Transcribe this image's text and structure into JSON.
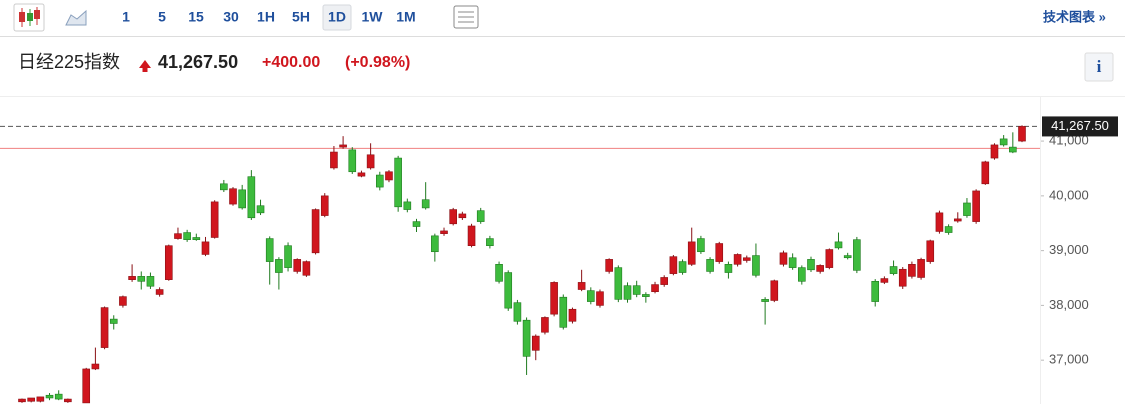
{
  "toolbar": {
    "intervals": [
      "1",
      "5",
      "15",
      "30",
      "1H",
      "5H",
      "1D",
      "1W",
      "1M"
    ],
    "active": "1D",
    "link": "技术图表 »"
  },
  "header": {
    "title": "日经225指数",
    "last": {
      "value": 41267.5,
      "label": "41,267.50"
    },
    "change": {
      "value": 400,
      "label": "+400.00"
    },
    "change_pct": {
      "value": 0.98,
      "label": "(+0.98%)"
    },
    "info": "i"
  },
  "chart_data": {
    "type": "candlestick",
    "up_color": "#d0161e",
    "down_color": "#3dbb3d",
    "prev_close": 40867.5,
    "ylim": [
      36200,
      41750
    ],
    "yticks": [
      {
        "value": 37000,
        "label": "37,000"
      },
      {
        "value": 38000,
        "label": "38,000"
      },
      {
        "value": 39000,
        "label": "39,000"
      },
      {
        "value": 40000,
        "label": "40,000"
      },
      {
        "value": 41000,
        "label": "41,000"
      }
    ],
    "ohlc": [
      [
        36240,
        36300,
        36220,
        36290
      ],
      [
        36250,
        36310,
        36230,
        36310
      ],
      [
        36250,
        36330,
        36230,
        36330
      ],
      [
        36360,
        36400,
        36270,
        36310
      ],
      [
        36380,
        36450,
        36270,
        36290
      ],
      [
        36240,
        36300,
        36220,
        36290
      ],
      null,
      [
        36220,
        36860,
        36220,
        36840
      ],
      [
        36840,
        37230,
        36820,
        36930
      ],
      [
        37230,
        37980,
        37200,
        37960
      ],
      [
        37750,
        37820,
        37560,
        37670
      ],
      [
        38000,
        38180,
        37960,
        38160
      ],
      [
        38470,
        38750,
        38430,
        38530
      ],
      [
        38530,
        38620,
        38290,
        38440
      ],
      [
        38530,
        38600,
        38300,
        38350
      ],
      [
        38200,
        38330,
        38160,
        38290
      ],
      [
        38470,
        39110,
        38450,
        39090
      ],
      [
        39220,
        39420,
        39200,
        39310
      ],
      [
        39330,
        39380,
        39160,
        39200
      ],
      [
        39240,
        39310,
        39180,
        39200
      ],
      [
        38930,
        39250,
        38900,
        39160
      ],
      [
        39240,
        39920,
        39220,
        39890
      ],
      [
        40220,
        40290,
        40070,
        40110
      ],
      [
        39850,
        40160,
        39820,
        40130
      ],
      [
        40110,
        40200,
        39750,
        39780
      ],
      [
        40350,
        40470,
        39560,
        39600
      ],
      [
        39820,
        39930,
        39650,
        39690
      ],
      [
        39220,
        39260,
        38380,
        38800
      ],
      [
        38840,
        38880,
        38290,
        38600
      ],
      [
        39090,
        39150,
        38620,
        38690
      ],
      [
        38620,
        38860,
        38580,
        38840
      ],
      [
        38550,
        38820,
        38520,
        38800
      ],
      [
        38960,
        39770,
        38930,
        39750
      ],
      [
        39640,
        40050,
        39610,
        40000
      ],
      [
        40510,
        40910,
        40480,
        40800
      ],
      [
        40890,
        41090,
        40860,
        40930
      ],
      [
        40840,
        40890,
        40400,
        40440
      ],
      [
        40360,
        40460,
        40340,
        40420
      ],
      [
        40510,
        40960,
        40480,
        40750
      ],
      [
        40380,
        40440,
        40100,
        40160
      ],
      [
        40290,
        40470,
        40250,
        40440
      ],
      [
        40690,
        40730,
        39710,
        39800
      ],
      [
        39890,
        39950,
        39700,
        39750
      ],
      [
        39530,
        39580,
        39340,
        39440
      ],
      [
        39930,
        40250,
        39750,
        39780
      ],
      [
        39270,
        39310,
        38800,
        38980
      ],
      [
        39310,
        39420,
        39270,
        39360
      ],
      [
        39490,
        39780,
        39460,
        39750
      ],
      [
        39600,
        39710,
        39560,
        39670
      ],
      [
        39090,
        39490,
        39060,
        39450
      ],
      [
        39730,
        39780,
        39490,
        39530
      ],
      [
        39220,
        39270,
        39040,
        39090
      ],
      [
        38750,
        38800,
        38400,
        38440
      ],
      [
        38600,
        38640,
        37900,
        37950
      ],
      [
        38050,
        38100,
        37650,
        37710
      ],
      [
        37730,
        37780,
        36730,
        37070
      ],
      [
        37180,
        37470,
        37000,
        37440
      ],
      [
        37510,
        37800,
        37470,
        37780
      ],
      [
        37840,
        38440,
        37800,
        38420
      ],
      [
        38150,
        38200,
        37560,
        37600
      ],
      [
        37710,
        37960,
        37670,
        37930
      ],
      [
        38290,
        38650,
        38260,
        38420
      ],
      [
        38270,
        38330,
        38020,
        38070
      ],
      [
        38000,
        38290,
        37960,
        38250
      ],
      [
        38620,
        38860,
        38580,
        38840
      ],
      [
        38690,
        38730,
        38060,
        38110
      ],
      [
        38360,
        38420,
        38050,
        38110
      ],
      [
        38360,
        38450,
        38150,
        38200
      ],
      [
        38200,
        38240,
        38050,
        38160
      ],
      [
        38250,
        38430,
        38220,
        38380
      ],
      [
        38380,
        38550,
        38340,
        38510
      ],
      [
        38580,
        38920,
        38550,
        38890
      ],
      [
        38800,
        38840,
        38560,
        38600
      ],
      [
        38750,
        39420,
        38720,
        39160
      ],
      [
        39220,
        39270,
        38940,
        38980
      ],
      [
        38840,
        38880,
        38580,
        38620
      ],
      [
        38800,
        39160,
        38760,
        39130
      ],
      [
        38750,
        38800,
        38490,
        38600
      ],
      [
        38750,
        38950,
        38710,
        38930
      ],
      [
        38820,
        38910,
        38780,
        38870
      ],
      [
        38910,
        39130,
        38510,
        38550
      ],
      [
        38110,
        38150,
        37650,
        38070
      ],
      [
        38090,
        38470,
        38060,
        38450
      ],
      [
        38750,
        39000,
        38710,
        38960
      ],
      [
        38870,
        38950,
        38650,
        38690
      ],
      [
        38690,
        38730,
        38380,
        38440
      ],
      [
        38840,
        38890,
        38610,
        38650
      ],
      [
        38620,
        38750,
        38580,
        38730
      ],
      [
        38690,
        39040,
        38660,
        39020
      ],
      [
        39160,
        39330,
        39020,
        39050
      ],
      [
        38910,
        38960,
        38840,
        38870
      ],
      [
        39200,
        39250,
        38590,
        38640
      ],
      null,
      [
        38440,
        38480,
        37980,
        38070
      ],
      [
        38420,
        38530,
        38390,
        38490
      ],
      [
        38710,
        38820,
        38550,
        38580
      ],
      [
        38350,
        38700,
        38300,
        38660
      ],
      [
        38530,
        38800,
        38490,
        38750
      ],
      [
        38510,
        38870,
        38470,
        38840
      ],
      [
        38800,
        39200,
        38760,
        39180
      ],
      [
        39350,
        39730,
        39310,
        39690
      ],
      [
        39440,
        39480,
        39290,
        39330
      ],
      [
        39540,
        39700,
        39510,
        39580
      ],
      [
        39870,
        39960,
        39600,
        39640
      ],
      [
        39530,
        40120,
        39490,
        40090
      ],
      [
        40220,
        40640,
        40200,
        40620
      ],
      [
        40690,
        40960,
        40660,
        40930
      ],
      [
        41040,
        41110,
        40900,
        40930
      ],
      [
        40890,
        41160,
        40780,
        40800
      ],
      [
        41000,
        41290,
        40980,
        41267.5
      ]
    ]
  }
}
